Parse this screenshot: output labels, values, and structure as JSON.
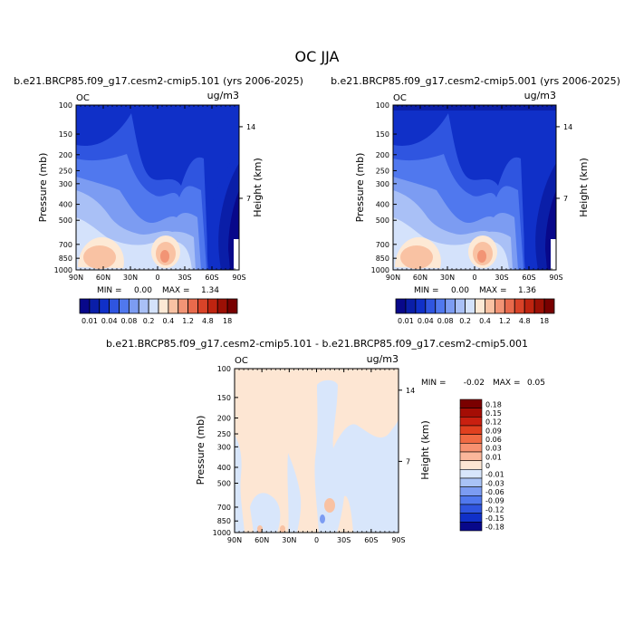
{
  "figure": {
    "title": "OC JJA",
    "var_label": "OC",
    "units": "ug/m3"
  },
  "chart_data": [
    {
      "type": "heatmap",
      "title": "b.e21.BRCP85.f09_g17.cesm2-cmip5.101 (yrs 2006-2025)",
      "xlabel": "",
      "ylabel": "Pressure (mb)",
      "y2label": "Height (km)",
      "xticks": [
        "90N",
        "60N",
        "30N",
        "0",
        "30S",
        "60S",
        "90S"
      ],
      "yticks": [
        "100",
        "150",
        "200",
        "250",
        "300",
        "400",
        "500",
        "700",
        "850",
        "1000"
      ],
      "y2ticks": [
        "14",
        "7"
      ],
      "min_label": "MIN =",
      "min_value": "0.00",
      "max_label": "MAX =",
      "max_value": "1.34",
      "legend": "bottom",
      "colorbar_labels": [
        "0.01",
        "0.04",
        "0.08",
        "0.2",
        "0.4",
        "1.2",
        "4.8",
        "18"
      ]
    },
    {
      "type": "heatmap",
      "title": "b.e21.BRCP85.f09_g17.cesm2-cmip5.001 (yrs 2006-2025)",
      "xlabel": "",
      "ylabel": "Pressure (mb)",
      "y2label": "Height (km)",
      "xticks": [
        "90N",
        "60N",
        "30N",
        "0",
        "30S",
        "60S",
        "90S"
      ],
      "yticks": [
        "100",
        "150",
        "200",
        "250",
        "300",
        "400",
        "500",
        "700",
        "850",
        "1000"
      ],
      "y2ticks": [
        "14",
        "7"
      ],
      "min_label": "MIN =",
      "min_value": "0.00",
      "max_label": "MAX =",
      "max_value": "1.36",
      "legend": "bottom",
      "colorbar_labels": [
        "0.01",
        "0.04",
        "0.08",
        "0.2",
        "0.4",
        "1.2",
        "4.8",
        "18"
      ]
    },
    {
      "type": "heatmap",
      "title": "b.e21.BRCP85.f09_g17.cesm2-cmip5.101 - b.e21.BRCP85.f09_g17.cesm2-cmip5.001",
      "xlabel": "",
      "ylabel": "Pressure (mb)",
      "y2label": "Height (km)",
      "xticks": [
        "90N",
        "60N",
        "30N",
        "0",
        "30S",
        "60S",
        "90S"
      ],
      "yticks": [
        "100",
        "150",
        "200",
        "250",
        "300",
        "400",
        "500",
        "700",
        "850",
        "1000"
      ],
      "y2ticks": [
        "14",
        "7"
      ],
      "min_label": "MIN =",
      "min_value": "-0.02",
      "max_label": "MAX =",
      "max_value": "0.05",
      "legend": "right",
      "colorbar_labels": [
        "0.18",
        "0.15",
        "0.12",
        "0.09",
        "0.06",
        "0.03",
        "0.01",
        "0",
        "-0.01",
        "-0.03",
        "-0.06",
        "-0.09",
        "-0.12",
        "-0.15",
        "-0.18"
      ]
    }
  ],
  "colors": {
    "abs_scale": [
      "#08088a",
      "#0a1ea8",
      "#1030c8",
      "#2f55e0",
      "#5078ee",
      "#7c9cf2",
      "#a9c0f6",
      "#d4e2fb",
      "#fde9d5",
      "#f9c2a3",
      "#f29475",
      "#e86a4c",
      "#d94328",
      "#bf2410",
      "#9c1005",
      "#780000"
    ],
    "diff_scale": [
      "#7a0000",
      "#a50d05",
      "#c92010",
      "#e0401f",
      "#f06a43",
      "#f79170",
      "#fbb79b",
      "#fde6d3",
      "#d8e6fb",
      "#a9c3f6",
      "#7c9cf2",
      "#5078ee",
      "#2f55e0",
      "#1030c8",
      "#08088a"
    ]
  }
}
